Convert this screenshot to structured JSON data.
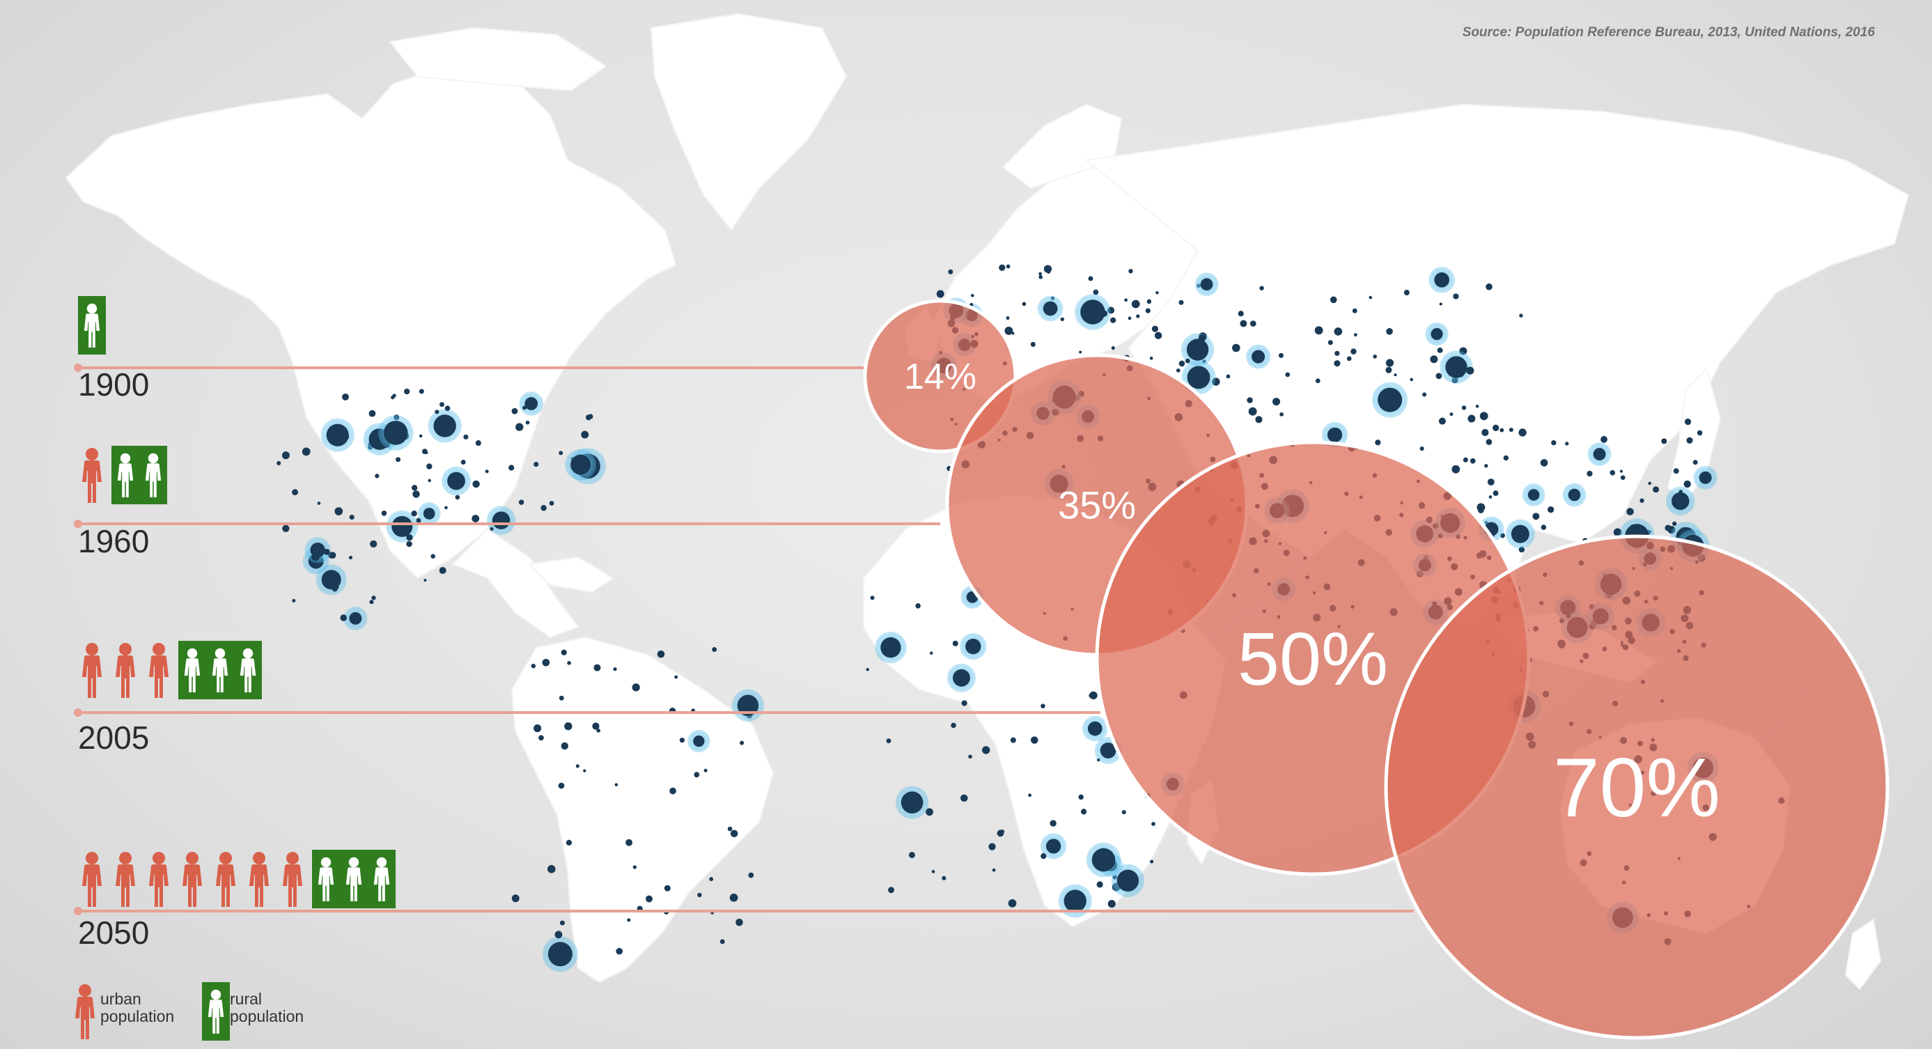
{
  "source": "Source: Population Reference Bureau, 2013, United Nations, 2016",
  "colors": {
    "urban": "#d9604a",
    "rural": "#2f7d1f",
    "circle": "#dd6a55",
    "timeline": "#e8a192",
    "city_dot": "#1a3a56",
    "city_glow": "#4fb8e6"
  },
  "rows": [
    {
      "year": "1900",
      "urban": 0,
      "rural": 1,
      "percent": "14%",
      "urban_share": 14
    },
    {
      "year": "1960",
      "urban": 1,
      "rural": 2,
      "percent": "35%",
      "urban_share": 35
    },
    {
      "year": "2005",
      "urban": 3,
      "rural": 3,
      "percent": "50%",
      "urban_share": 50
    },
    {
      "year": "2050",
      "urban": 7,
      "rural": 3,
      "percent": "70%",
      "urban_share": 70
    }
  ],
  "legend": {
    "urban_line1": "urban",
    "urban_line2": "population",
    "rural_line1": "rural",
    "rural_line2": "population",
    "urban_icon": "person-icon-urban",
    "rural_icon": "person-icon-rural"
  }
}
